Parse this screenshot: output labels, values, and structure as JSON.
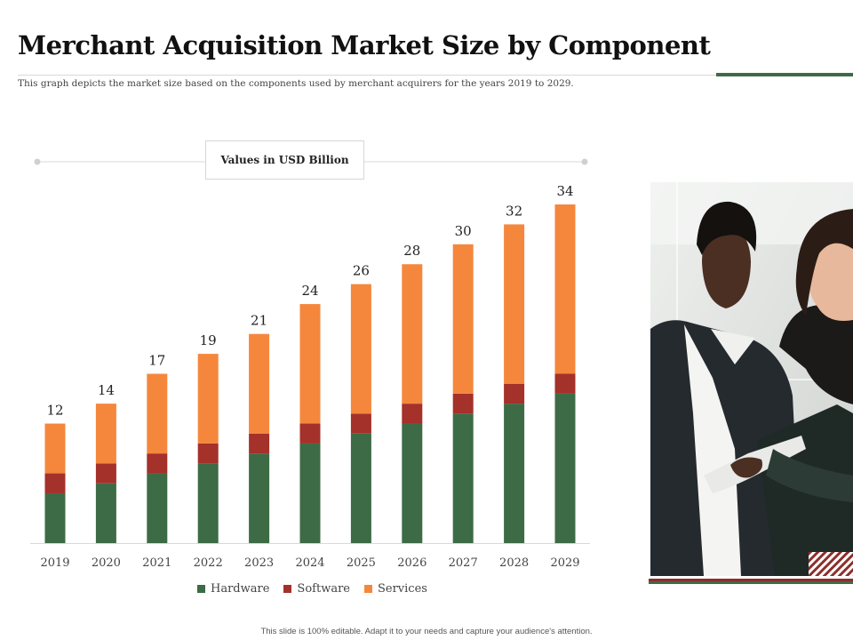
{
  "title": "Merchant Acquisition Market Size by Component",
  "subtitle": "This graph  depicts the market  size based on the components  used by merchant  acquirers  for the years 2019  to 2029.",
  "unit_label": "Values in USD Billion",
  "footer": "This slide is 100% editable.  Adapt it to your needs and capture your audience's attention.",
  "colors": {
    "hardware": "#3d6b45",
    "software": "#a4312a",
    "services": "#f5873c",
    "accent": "#3d6b45"
  },
  "photo": {
    "icon": "business-people-photo"
  },
  "chart_data": {
    "type": "bar",
    "stacked": true,
    "categories": [
      "2019",
      "2020",
      "2021",
      "2022",
      "2023",
      "2024",
      "2025",
      "2026",
      "2027",
      "2028",
      "2029"
    ],
    "series": [
      {
        "name": "Hardware",
        "values": [
          5,
          6,
          7,
          8,
          9,
          10,
          11,
          12,
          13,
          14,
          15
        ]
      },
      {
        "name": "Software",
        "values": [
          2,
          2,
          2,
          2,
          2,
          2,
          2,
          2,
          2,
          2,
          2
        ]
      },
      {
        "name": "Services",
        "values": [
          5,
          6,
          8,
          9,
          10,
          12,
          13,
          14,
          15,
          16,
          17
        ]
      }
    ],
    "totals": [
      "12",
      "14",
      "17",
      "19",
      "21",
      "24",
      "26",
      "28",
      "30",
      "32",
      "34"
    ],
    "ylim": [
      0,
      34
    ],
    "legend_position": "bottom",
    "grid": false
  }
}
